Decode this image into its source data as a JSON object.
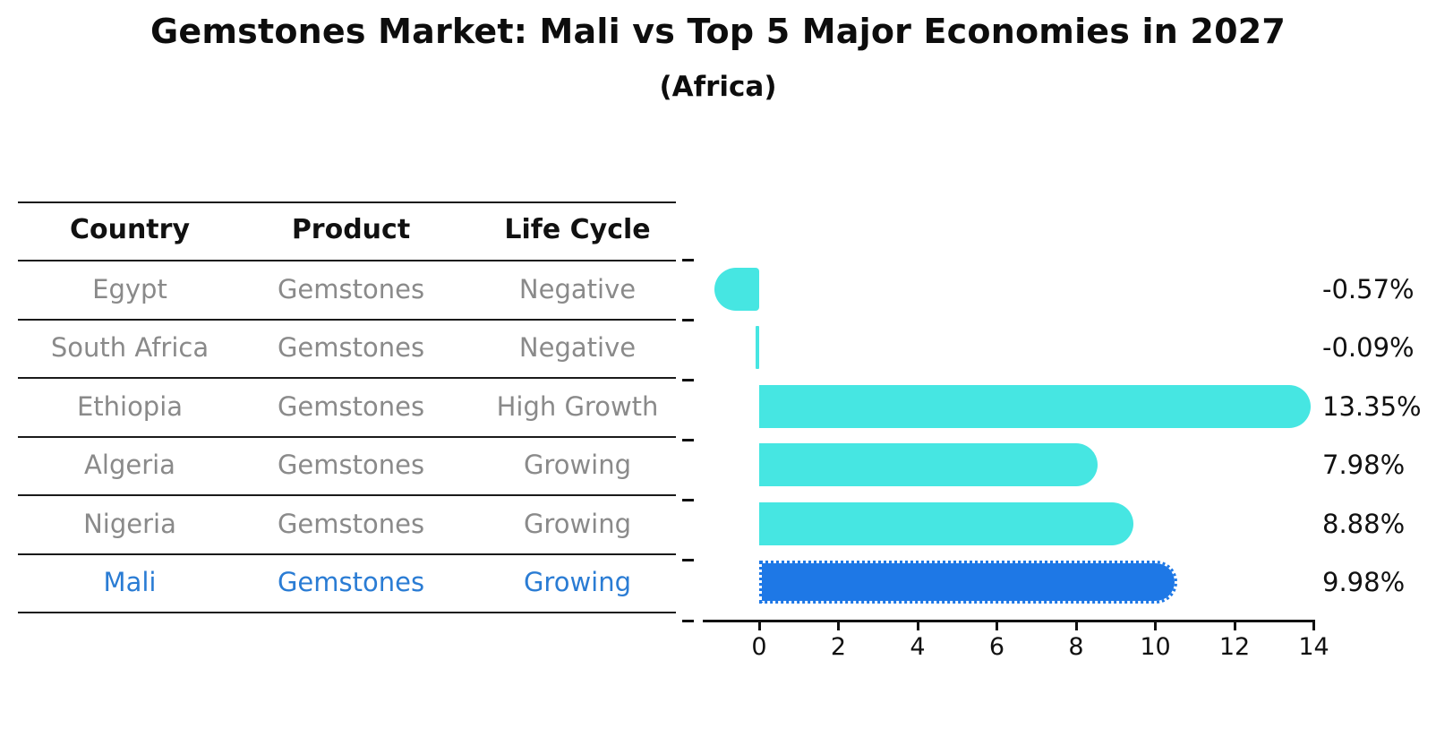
{
  "header": {
    "title": "Gemstones Market: Mali vs Top 5 Major Economies in 2027",
    "subtitle": "(Africa)"
  },
  "table": {
    "headers": [
      "Country",
      "Product",
      "Life Cycle"
    ],
    "rows": [
      {
        "country": "Egypt",
        "product": "Gemstones",
        "life_cycle": "Negative",
        "highlight": false
      },
      {
        "country": "South Africa",
        "product": "Gemstones",
        "life_cycle": "Negative",
        "highlight": false
      },
      {
        "country": "Ethiopia",
        "product": "Gemstones",
        "life_cycle": "High Growth",
        "highlight": false
      },
      {
        "country": "Algeria",
        "product": "Gemstones",
        "life_cycle": "Growing",
        "highlight": false
      },
      {
        "country": "Nigeria",
        "product": "Gemstones",
        "life_cycle": "Growing",
        "highlight": true
      }
    ],
    "highlight_row": {
      "country": "Mali",
      "product": "Gemstones",
      "life_cycle": "Growing"
    }
  },
  "chart_data": {
    "type": "bar",
    "orientation": "horizontal",
    "title": "Gemstones Market: Mali vs Top 5 Major Economies in 2027 (Africa)",
    "categories": [
      "Egypt",
      "South Africa",
      "Ethiopia",
      "Algeria",
      "Nigeria",
      "Mali"
    ],
    "values": [
      -0.57,
      -0.09,
      13.35,
      7.98,
      8.88,
      9.98
    ],
    "value_labels": [
      "-0.57%",
      "-0.09%",
      "13.35%",
      "7.98%",
      "8.88%",
      "9.98%"
    ],
    "unit": "percent",
    "xlim": [
      0,
      14
    ],
    "x_ticks": [
      0,
      2,
      4,
      6,
      8,
      10,
      12,
      14
    ],
    "highlight_category": "Mali",
    "grid": false,
    "legend": "none",
    "colors": {
      "bar_default": "#46e6e2",
      "bar_highlight": "#1e78e6",
      "highlight_text": "#2a7cd4",
      "muted_text": "#8a8a8a",
      "axis_text": "#111111"
    }
  }
}
